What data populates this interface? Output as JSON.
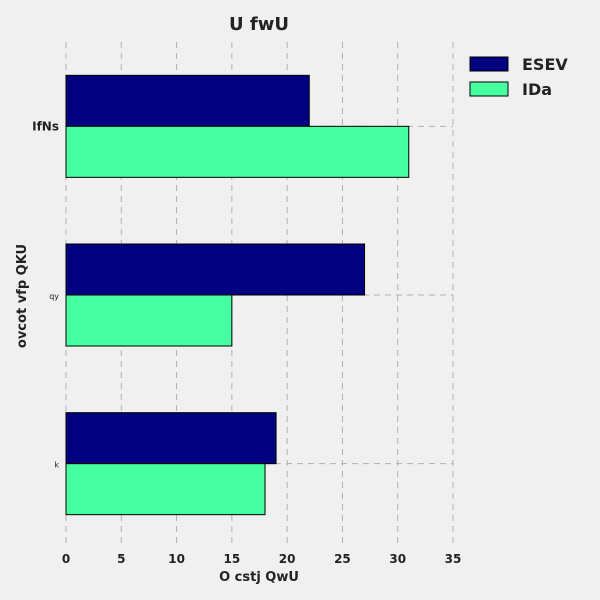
{
  "chart_data": {
    "type": "bar",
    "orientation": "horizontal",
    "title": "U fwU",
    "xlabel": "O cstj QwU",
    "ylabel": "ovcot vfp QKU",
    "categories": [
      "IfNs",
      "qy",
      "k"
    ],
    "series": [
      {
        "name": "ESEV",
        "values": [
          22,
          27,
          19
        ],
        "color": "#000080"
      },
      {
        "name": "IDa",
        "values": [
          31,
          15,
          18
        ],
        "color": "#46ffa0"
      }
    ],
    "xlim": [
      0,
      35
    ],
    "x_ticks": [
      "0",
      "5",
      "10",
      "15",
      "20",
      "25",
      "30",
      "35"
    ],
    "grid": true,
    "legend_position": "top-right"
  }
}
